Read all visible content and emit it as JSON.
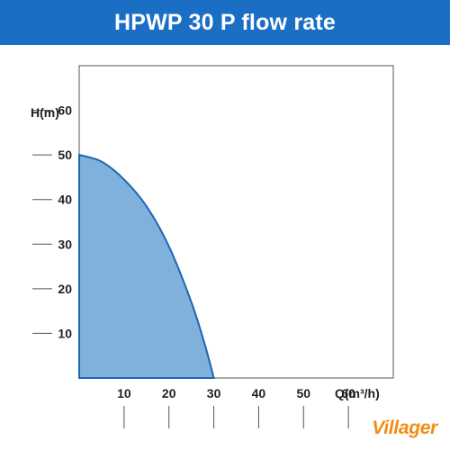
{
  "header": {
    "title": "HPWP 30 P flow rate"
  },
  "brand": {
    "name": "Villager",
    "color": "#f28c13"
  },
  "colors": {
    "title_bar": "#1a6fc4",
    "curve_fill": "#7fb1dc",
    "curve_stroke": "#1b67b3"
  },
  "chart_data": {
    "type": "area",
    "title": "HPWP 30 P flow rate",
    "xlabel": "Q(m³/h)",
    "ylabel": "H(m)",
    "xlim": [
      0,
      70
    ],
    "ylim": [
      0,
      70
    ],
    "xticks": [
      10,
      20,
      30,
      40,
      50,
      60
    ],
    "yticks": [
      10,
      20,
      30,
      40,
      50,
      60
    ],
    "grid": false,
    "series": [
      {
        "x": [
          0,
          5,
          10,
          15,
          20,
          25,
          28,
          30
        ],
        "y": [
          50,
          48.5,
          44.5,
          38.5,
          29.5,
          17,
          7.5,
          0
        ]
      }
    ]
  }
}
